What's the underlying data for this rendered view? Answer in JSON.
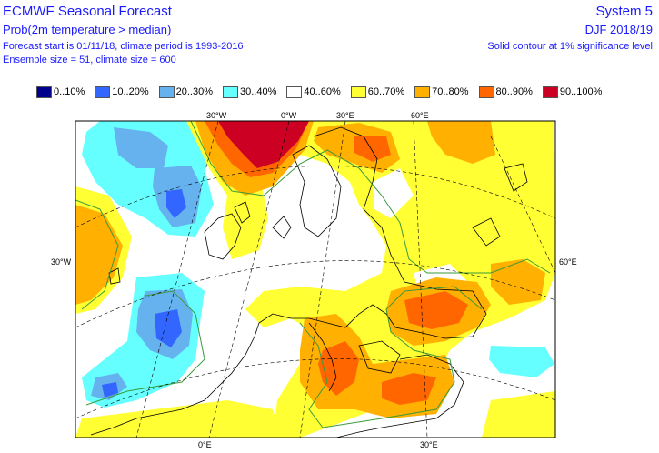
{
  "header": {
    "title": "ECMWF Seasonal Forecast",
    "subtitle": "Prob(2m temperature > median)",
    "line3": "Forecast start is 01/11/18, climate period is 1993-2016",
    "line4": "Ensemble size = 51, climate size = 600",
    "system": "System 5",
    "season": "DJF 2018/19",
    "significance": "Solid contour at 1% significance level"
  },
  "legend": [
    {
      "label": "0..10%",
      "color": "#00008c"
    },
    {
      "label": "10..20%",
      "color": "#3366ff"
    },
    {
      "label": "20..30%",
      "color": "#66b2ee"
    },
    {
      "label": "30..40%",
      "color": "#66ffff"
    },
    {
      "label": "40..60%",
      "color": "#ffffff"
    },
    {
      "label": "60..70%",
      "color": "#ffff33"
    },
    {
      "label": "70..80%",
      "color": "#ffb000"
    },
    {
      "label": "80..90%",
      "color": "#ff6600"
    },
    {
      "label": "90..100%",
      "color": "#cc0022"
    }
  ],
  "axis_labels": {
    "lon_30w_top": "30°W",
    "lon_0_top": "0°W",
    "lon_30e_top": "30°E",
    "lon_60e_top": "60°E",
    "lat_30w_left": "30°W",
    "lat_60e_right": "60°E",
    "lon_0_bottom": "0°E",
    "lon_30e_bottom": "30°E"
  }
}
